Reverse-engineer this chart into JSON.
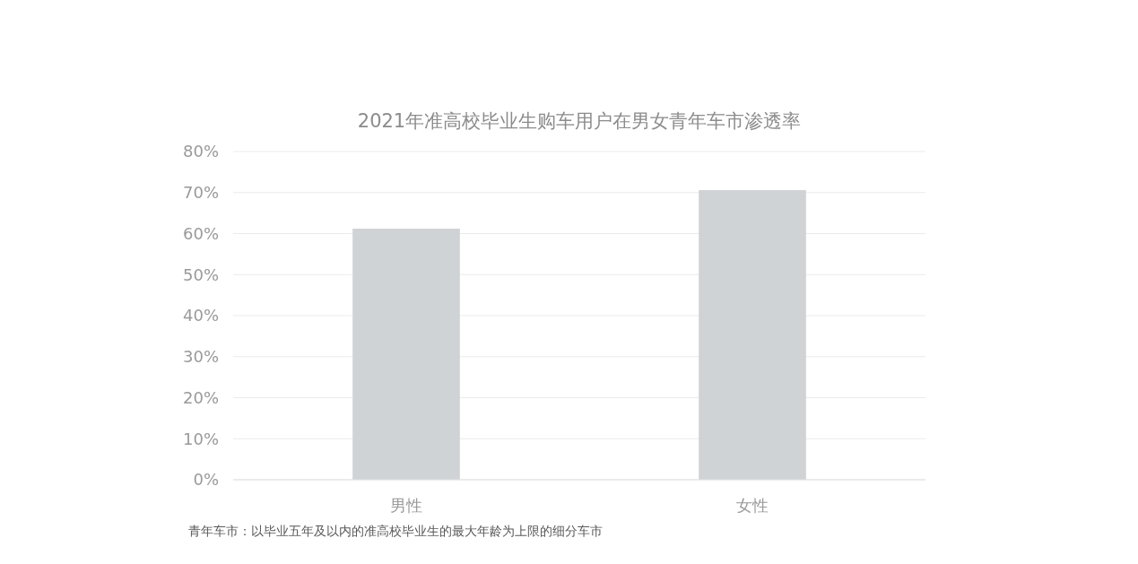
{
  "chart_data": {
    "type": "bar",
    "title": "2021年准高校毕业生购车用户在男女青年车市渗透率",
    "categories": [
      "男性",
      "女性"
    ],
    "values": [
      61.2,
      70.6
    ],
    "color": "#d0d3d6",
    "ylim": [
      0,
      80
    ],
    "yticks": [
      {
        "value": 0,
        "label": "0%"
      },
      {
        "value": 10,
        "label": "10%"
      },
      {
        "value": 20,
        "label": "20%"
      },
      {
        "value": 30,
        "label": "30%"
      },
      {
        "value": 40,
        "label": "40%"
      },
      {
        "value": 50,
        "label": "50%"
      },
      {
        "value": 60,
        "label": "60%"
      },
      {
        "value": 70,
        "label": "70%"
      },
      {
        "value": 80,
        "label": "80%"
      }
    ],
    "grid": "y",
    "annotations": [
      "青年车市：以毕业五年及以内的准高校毕业生的最大年龄为上限的细分车市"
    ]
  }
}
